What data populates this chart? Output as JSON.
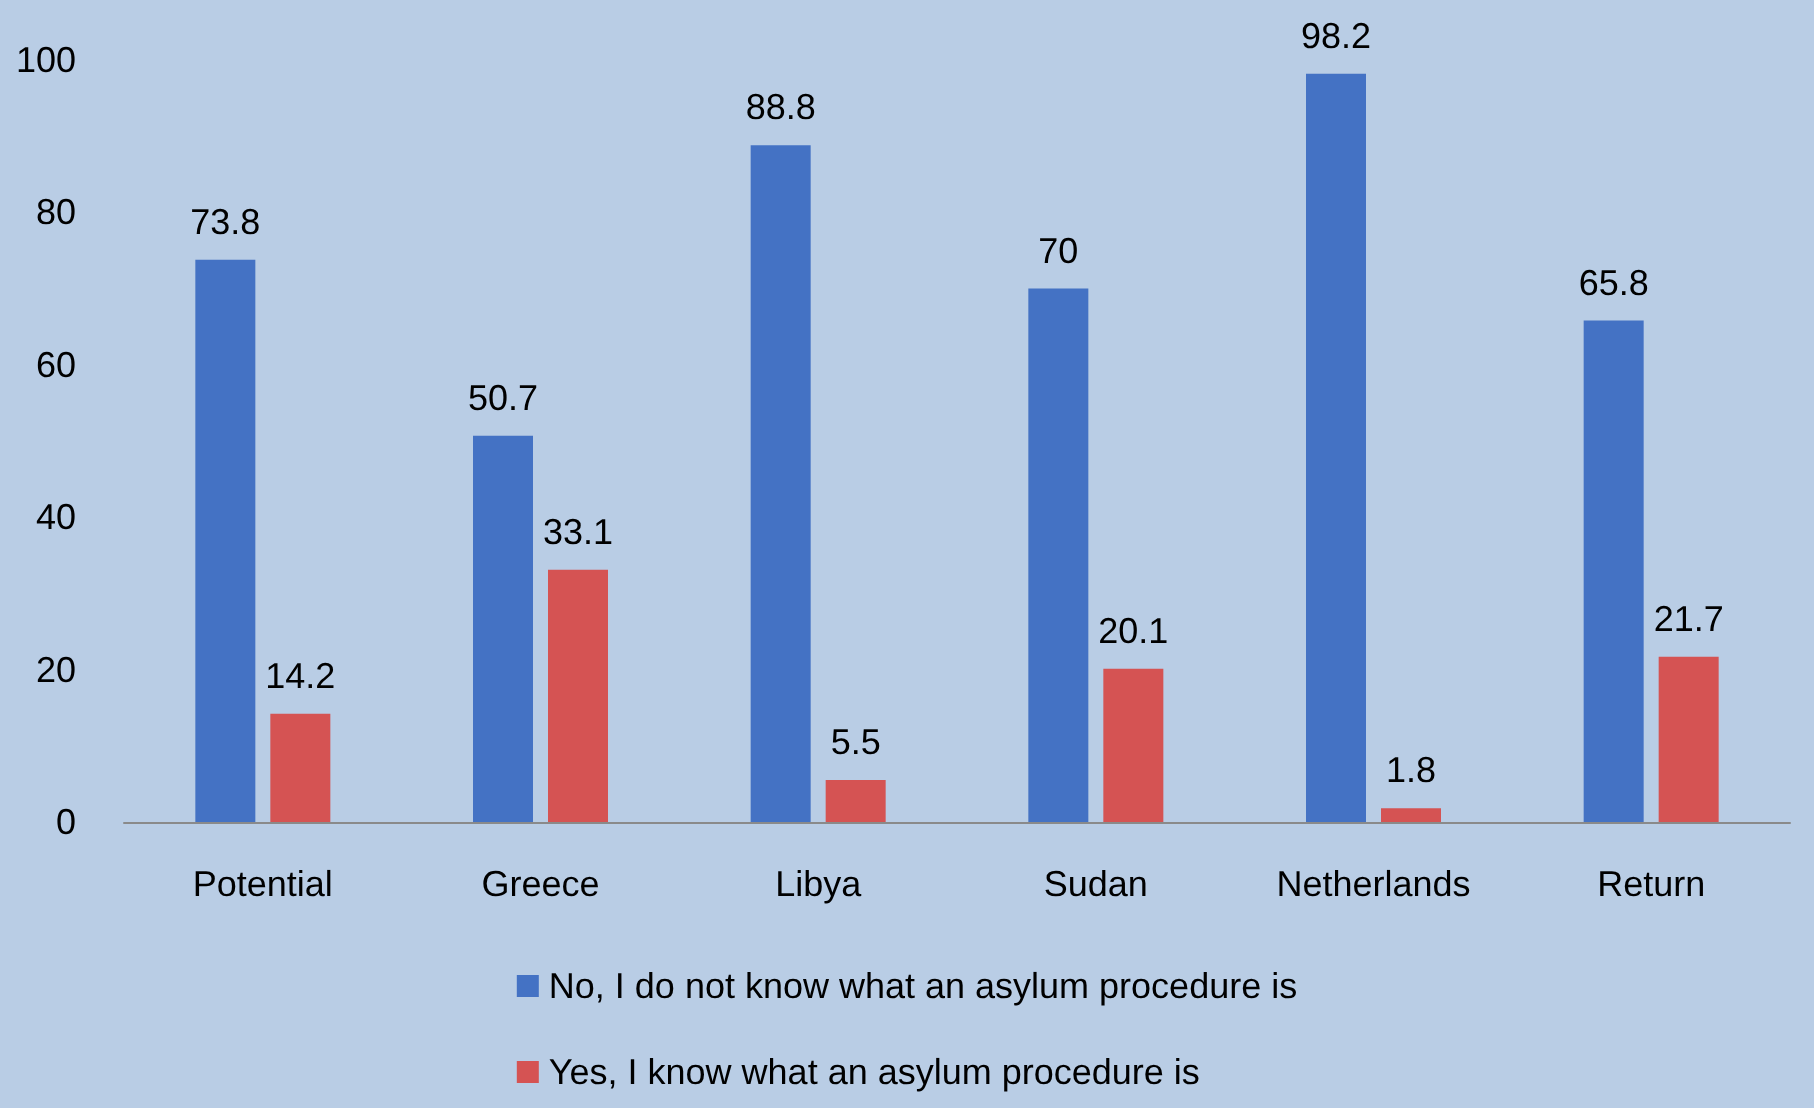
{
  "chart_data": {
    "type": "bar",
    "categories": [
      "Potential",
      "Greece",
      "Libya",
      "Sudan",
      "Netherlands",
      "Return"
    ],
    "series": [
      {
        "name": "No, I do not know what an asylum procedure is",
        "color": "#4472c4",
        "values": [
          73.8,
          50.7,
          88.8,
          70,
          98.2,
          65.8
        ]
      },
      {
        "name": "Yes, I know what an asylum procedure is",
        "color": "#d55353",
        "values": [
          14.2,
          33.1,
          5.5,
          20.1,
          1.8,
          21.7
        ]
      }
    ],
    "ylim": [
      0,
      100
    ],
    "yticks": [
      0,
      20,
      40,
      60,
      80,
      100
    ],
    "grid": false,
    "legend": "bottom",
    "data_labels": true
  }
}
